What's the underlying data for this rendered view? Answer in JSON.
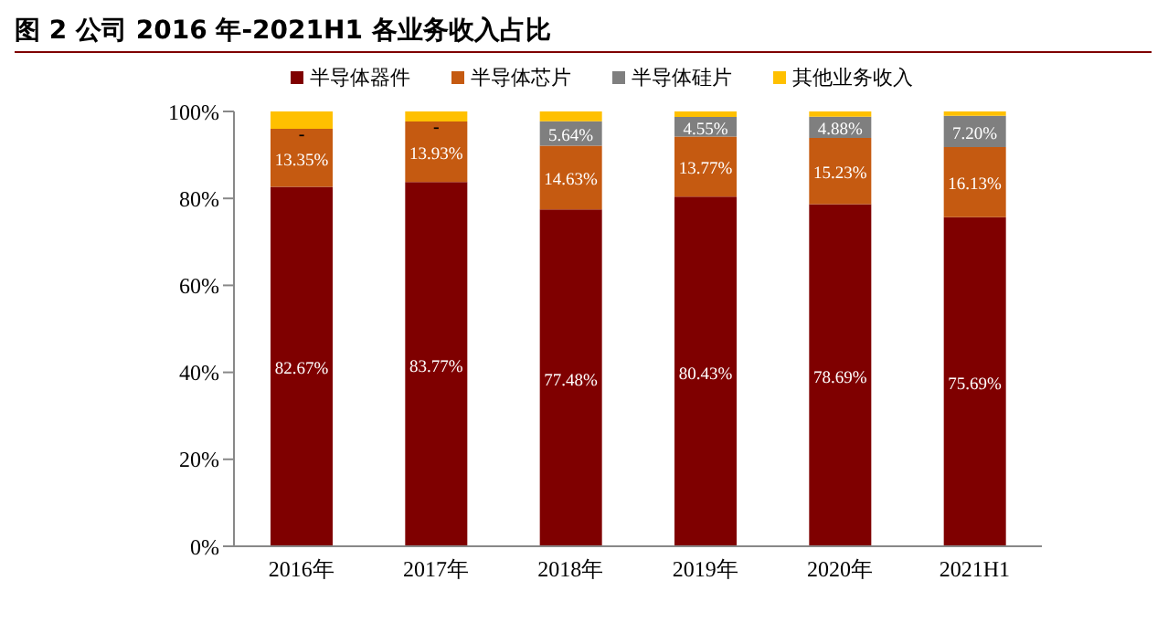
{
  "chart_data": {
    "type": "bar",
    "title": "图 2 公司 2016 年-2021H1 各业务收入占比",
    "categories": [
      "2016年",
      "2017年",
      "2018年",
      "2019年",
      "2020年",
      "2021H1"
    ],
    "stacked": true,
    "legend": "top",
    "grid": false,
    "ylim": [
      0,
      100
    ],
    "yticks": [
      {
        "value": 0,
        "label": "0%"
      },
      {
        "value": 20,
        "label": "20%"
      },
      {
        "value": 40,
        "label": "40%"
      },
      {
        "value": 60,
        "label": "60%"
      },
      {
        "value": 80,
        "label": "80%"
      },
      {
        "value": 100,
        "label": "100%"
      }
    ],
    "series": [
      {
        "name": "半导体器件",
        "color": "#7f0000",
        "values": [
          82.67,
          83.77,
          77.48,
          80.43,
          78.69,
          75.69
        ],
        "value_labels": [
          "82.67%",
          "83.77%",
          "77.48%",
          "80.43%",
          "78.69%",
          "75.69%"
        ]
      },
      {
        "name": "半导体芯片",
        "color": "#c55a11",
        "values": [
          13.35,
          13.93,
          14.63,
          13.77,
          15.23,
          16.13
        ],
        "value_labels": [
          "13.35%",
          "13.93%",
          "14.63%",
          "13.77%",
          "15.23%",
          "16.13%"
        ]
      },
      {
        "name": "半导体硅片",
        "color": "#7f7f7f",
        "values": [
          0,
          0,
          5.64,
          4.55,
          4.88,
          7.2
        ],
        "value_labels": [
          "-",
          "-",
          "5.64%",
          "4.55%",
          "4.88%",
          "7.20%"
        ]
      },
      {
        "name": "其他业务收入",
        "color": "#ffc000",
        "values": [
          4.0,
          2.3,
          2.3,
          1.3,
          1.2,
          1.0
        ]
      }
    ]
  }
}
